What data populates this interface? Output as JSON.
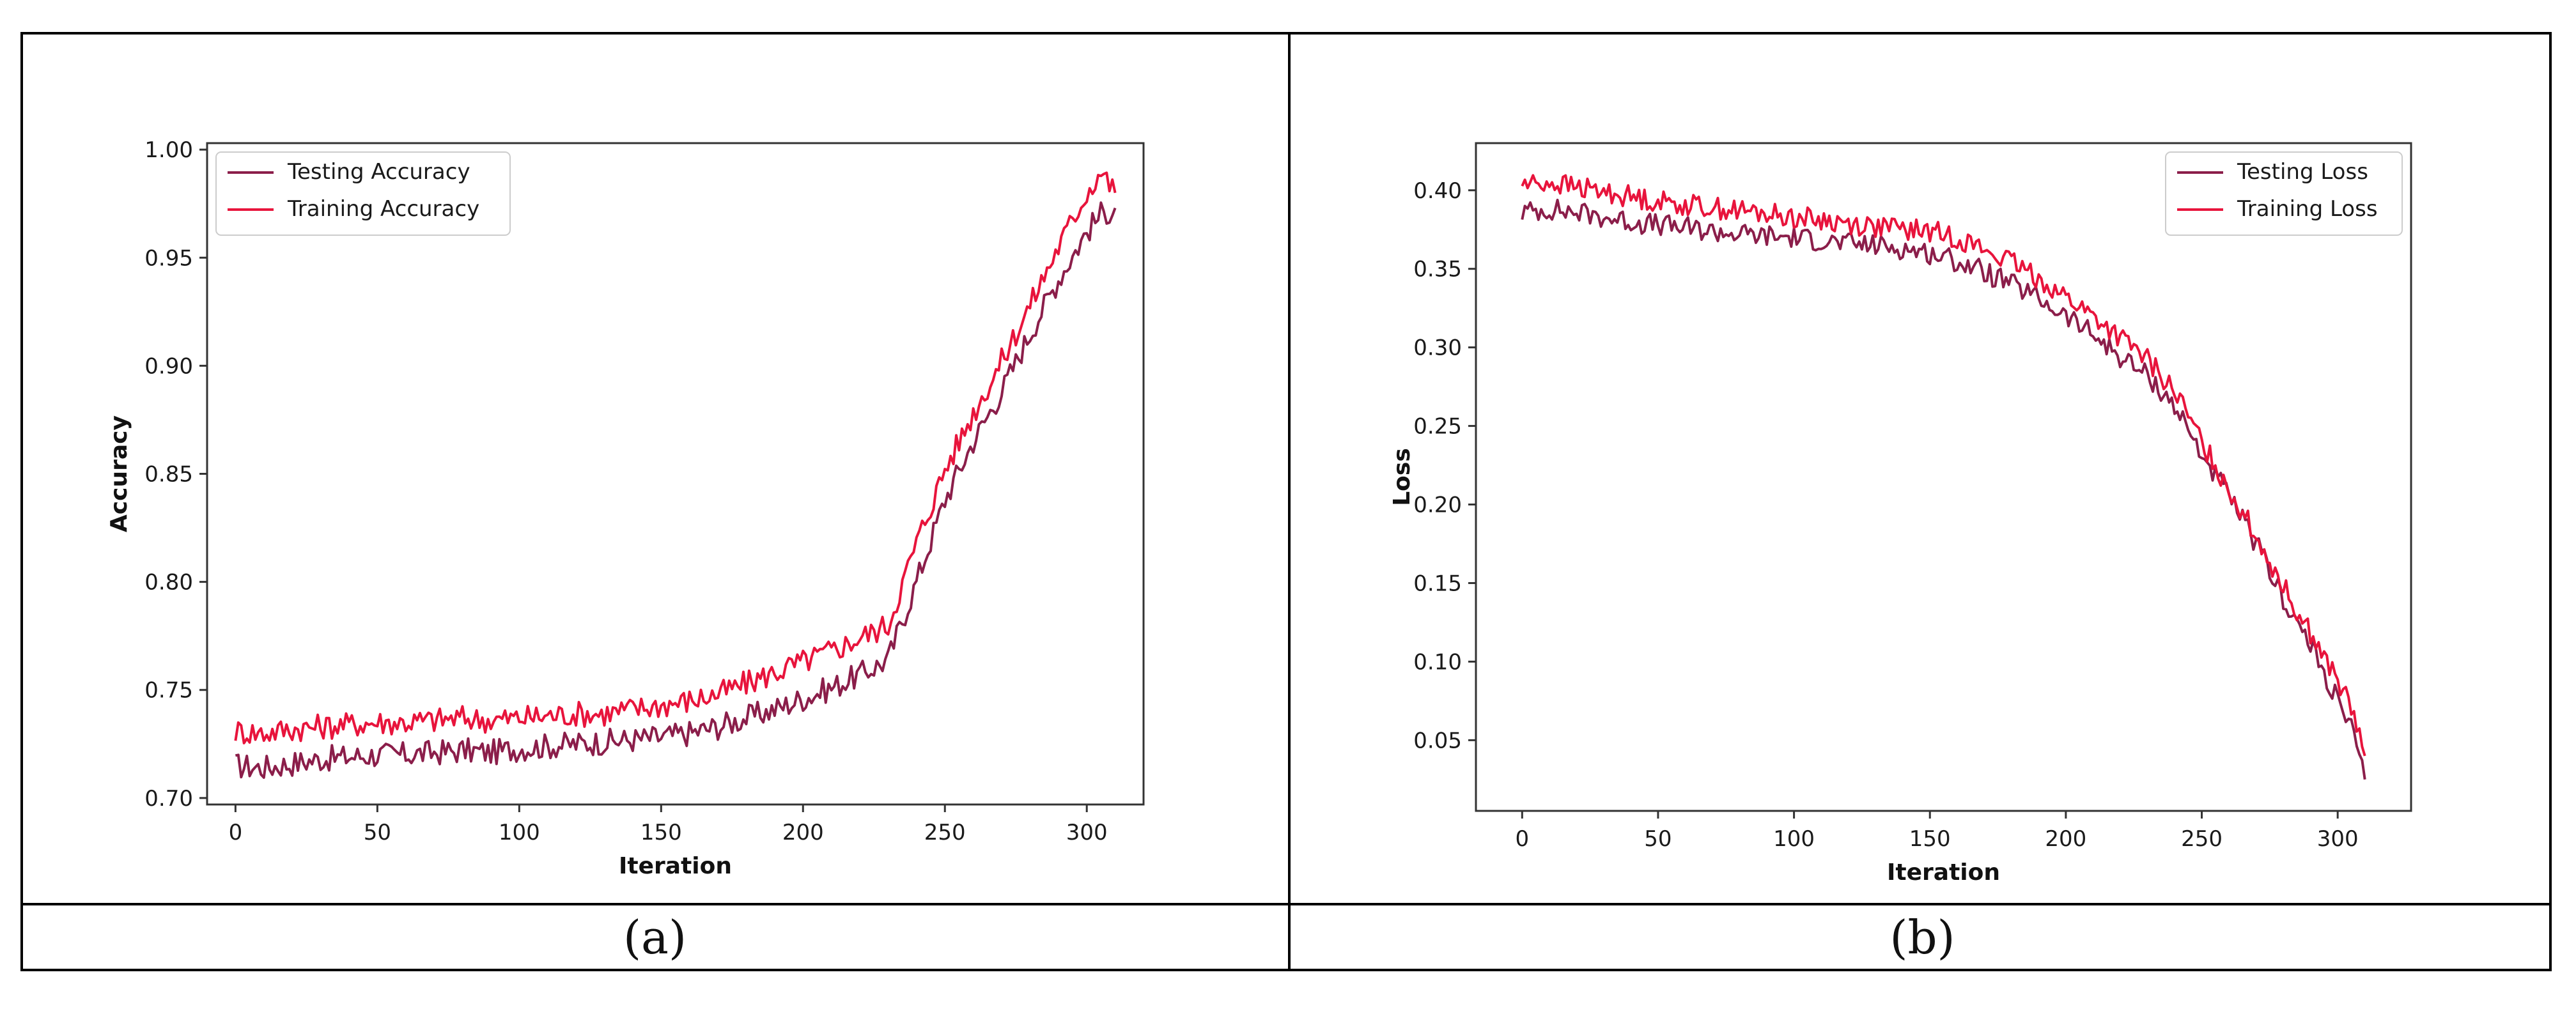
{
  "captions": [
    "(a)",
    "(b)"
  ],
  "colors": {
    "testing": "#8b1e4a",
    "training": "#e8143c"
  },
  "chart_data": [
    {
      "type": "line",
      "xlabel": "Iteration",
      "ylabel": "Accuracy",
      "xlim": [
        -10,
        320
      ],
      "ylim": [
        0.697,
        1.003
      ],
      "xticks": [
        0,
        50,
        100,
        150,
        200,
        250,
        300
      ],
      "yticks": [
        0.7,
        0.75,
        0.8,
        0.85,
        0.9,
        0.95,
        1.0
      ],
      "ytick_decimals": 2,
      "grid": false,
      "legend_position": "top-left",
      "series": [
        {
          "name": "Testing Accuracy",
          "color_key": "testing",
          "x": [
            0,
            10,
            20,
            30,
            40,
            50,
            60,
            70,
            80,
            90,
            100,
            110,
            120,
            130,
            140,
            150,
            160,
            170,
            180,
            190,
            200,
            210,
            220,
            230,
            240,
            250,
            260,
            270,
            280,
            290,
            300,
            305,
            310
          ],
          "y": [
            0.715,
            0.714,
            0.716,
            0.718,
            0.719,
            0.72,
            0.72,
            0.721,
            0.722,
            0.721,
            0.723,
            0.724,
            0.725,
            0.726,
            0.727,
            0.728,
            0.73,
            0.733,
            0.737,
            0.741,
            0.746,
            0.751,
            0.757,
            0.764,
            0.8,
            0.838,
            0.865,
            0.888,
            0.915,
            0.94,
            0.962,
            0.97,
            0.973
          ]
        },
        {
          "name": "Training Accuracy",
          "color_key": "training",
          "x": [
            0,
            10,
            20,
            30,
            40,
            50,
            60,
            70,
            80,
            90,
            100,
            110,
            120,
            130,
            140,
            150,
            160,
            170,
            180,
            190,
            200,
            210,
            220,
            230,
            240,
            250,
            260,
            270,
            280,
            290,
            300,
            305,
            310
          ],
          "y": [
            0.731,
            0.73,
            0.732,
            0.733,
            0.734,
            0.735,
            0.735,
            0.736,
            0.737,
            0.736,
            0.737,
            0.738,
            0.739,
            0.739,
            0.741,
            0.743,
            0.745,
            0.748,
            0.753,
            0.758,
            0.763,
            0.768,
            0.774,
            0.78,
            0.818,
            0.852,
            0.878,
            0.902,
            0.928,
            0.955,
            0.98,
            0.99,
            0.98
          ]
        }
      ]
    },
    {
      "type": "line",
      "xlabel": "Iteration",
      "ylabel": "Loss",
      "xlim": [
        -17,
        327
      ],
      "ylim": [
        0.005,
        0.43
      ],
      "xticks": [
        0,
        50,
        100,
        150,
        200,
        250,
        300
      ],
      "yticks": [
        0.05,
        0.1,
        0.15,
        0.2,
        0.25,
        0.3,
        0.35,
        0.4
      ],
      "ytick_decimals": 2,
      "grid": false,
      "legend_position": "top-right",
      "series": [
        {
          "name": "Testing Loss",
          "color_key": "testing",
          "x": [
            0,
            10,
            20,
            30,
            40,
            50,
            60,
            70,
            80,
            90,
            100,
            110,
            120,
            130,
            140,
            150,
            160,
            170,
            180,
            190,
            200,
            210,
            220,
            230,
            240,
            250,
            260,
            270,
            280,
            290,
            300,
            305,
            310
          ],
          "y": [
            0.386,
            0.388,
            0.386,
            0.383,
            0.38,
            0.378,
            0.376,
            0.374,
            0.372,
            0.371,
            0.37,
            0.368,
            0.366,
            0.365,
            0.363,
            0.36,
            0.355,
            0.348,
            0.34,
            0.331,
            0.32,
            0.308,
            0.294,
            0.282,
            0.263,
            0.232,
            0.205,
            0.175,
            0.14,
            0.11,
            0.075,
            0.058,
            0.025
          ]
        },
        {
          "name": "Training Loss",
          "color_key": "training",
          "x": [
            0,
            10,
            20,
            30,
            40,
            50,
            60,
            70,
            80,
            90,
            100,
            110,
            120,
            130,
            140,
            150,
            160,
            170,
            180,
            190,
            200,
            210,
            220,
            230,
            240,
            250,
            260,
            270,
            280,
            290,
            300,
            305,
            310
          ],
          "y": [
            0.404,
            0.405,
            0.402,
            0.399,
            0.396,
            0.393,
            0.391,
            0.389,
            0.387,
            0.385,
            0.383,
            0.381,
            0.379,
            0.377,
            0.375,
            0.374,
            0.37,
            0.362,
            0.354,
            0.344,
            0.332,
            0.32,
            0.306,
            0.292,
            0.272,
            0.24,
            0.21,
            0.18,
            0.148,
            0.118,
            0.088,
            0.07,
            0.04
          ]
        }
      ]
    }
  ]
}
